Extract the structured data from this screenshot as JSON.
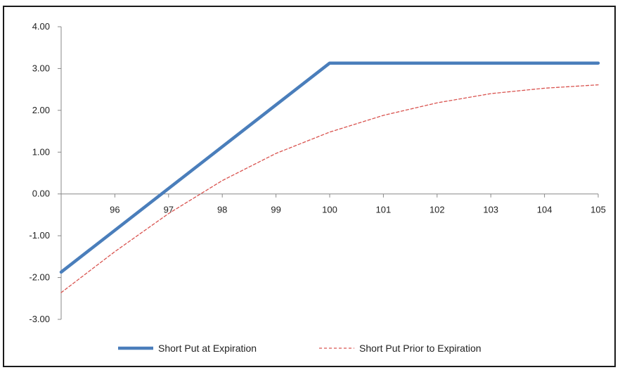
{
  "chart_data": {
    "type": "line",
    "title": "",
    "xlabel": "",
    "ylabel": "",
    "xlim": [
      95,
      105
    ],
    "ylim": [
      -3,
      4
    ],
    "y_ticks": [
      "4.00",
      "3.00",
      "2.00",
      "1.00",
      "0.00",
      "-1.00",
      "-2.00",
      "-3.00"
    ],
    "x_ticks": [
      "96",
      "97",
      "98",
      "99",
      "100",
      "101",
      "102",
      "103",
      "104",
      "105"
    ],
    "grid": false,
    "legend_position": "bottom",
    "series": [
      {
        "name": "Short Put at Expiration",
        "color": "#4a7ebb",
        "style": "solid",
        "x": [
          95,
          100,
          105
        ],
        "y": [
          -1.87,
          3.13,
          3.13
        ]
      },
      {
        "name": "Short Put Prior to Expiration",
        "color": "#d9534f",
        "style": "dashed",
        "x": [
          95,
          96,
          97,
          98,
          99,
          100,
          101,
          102,
          103,
          104,
          105
        ],
        "y": [
          -2.36,
          -1.38,
          -0.47,
          0.32,
          0.97,
          1.48,
          1.88,
          2.18,
          2.4,
          2.53,
          2.61
        ]
      }
    ]
  }
}
